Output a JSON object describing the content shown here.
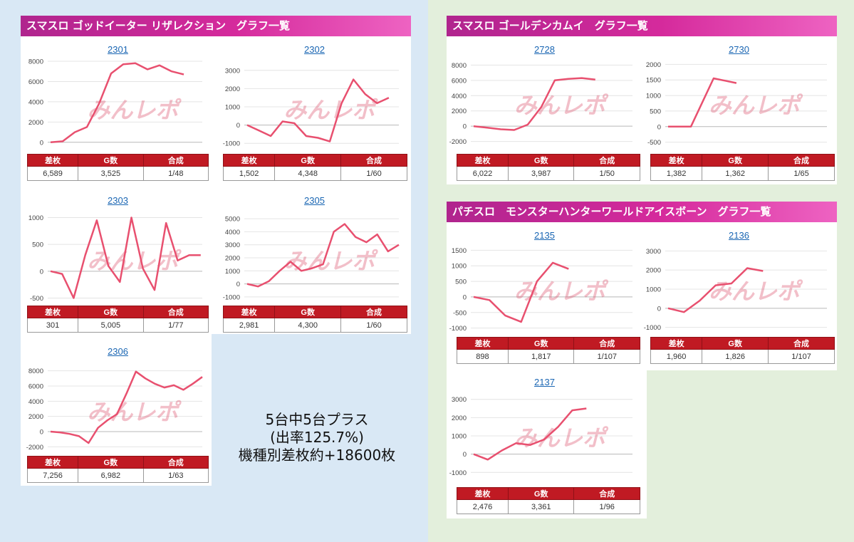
{
  "summary": {
    "line1": "5台中5台プラス",
    "line2": "(出率125.7%)",
    "line3": "機種別差枚約+18600枚"
  },
  "watermark": "みんレポ",
  "colors": {
    "line": "#e8506f",
    "header_start": "#b0258e",
    "header_end": "#ee63c2",
    "table_header": "#c01a23"
  },
  "panels": [
    {
      "title": "スマスロ ゴッドイーター リザレクション　グラフ一覧"
    },
    {
      "title": "スマスロ ゴールデンカムイ　グラフ一覧"
    },
    {
      "title": "パチスロ　モンスターハンターワールドアイスボーン　グラフ一覧"
    }
  ],
  "table_headers": [
    "差枚",
    "G数",
    "合成"
  ],
  "chart_data": [
    {
      "type": "line",
      "title": "2301",
      "ylim": [
        -1000,
        8000
      ],
      "yticks": [
        "8000",
        "6000",
        "4000",
        "2000",
        "0"
      ],
      "y": [
        0,
        100,
        1000,
        1500,
        3800,
        6800,
        7700,
        7800,
        7200,
        7600,
        7000,
        6700
      ],
      "stats": [
        "6,589",
        "3,525",
        "1/48"
      ]
    },
    {
      "type": "line",
      "title": "2302",
      "ylim": [
        -1500,
        3500
      ],
      "yticks": [
        "3000",
        "2000",
        "1000",
        "0",
        "-1000"
      ],
      "y": [
        0,
        -300,
        -600,
        200,
        100,
        -600,
        -700,
        -900,
        1200,
        2500,
        1700,
        1200,
        1500
      ],
      "stats": [
        "1,502",
        "4,348",
        "1/60"
      ]
    },
    {
      "type": "line",
      "title": "2303",
      "ylim": [
        -600,
        1100
      ],
      "yticks": [
        "1000",
        "500",
        "0",
        "-500"
      ],
      "y": [
        0,
        -50,
        -500,
        300,
        950,
        100,
        -200,
        1000,
        50,
        -350,
        900,
        200,
        300,
        300
      ],
      "stats": [
        "301",
        "5,005",
        "1/77"
      ]
    },
    {
      "type": "line",
      "title": "2305",
      "ylim": [
        -1500,
        5500
      ],
      "yticks": [
        "5000",
        "4000",
        "3000",
        "2000",
        "1000",
        "0",
        "-1000"
      ],
      "y": [
        0,
        -200,
        200,
        1000,
        1700,
        1000,
        1200,
        1500,
        4000,
        4600,
        3600,
        3200,
        3800,
        2500,
        3000
      ],
      "stats": [
        "2,981",
        "4,300",
        "1/60"
      ]
    },
    {
      "type": "line",
      "title": "2306",
      "ylim": [
        -3000,
        9000
      ],
      "yticks": [
        "8000",
        "6000",
        "4000",
        "2000",
        "0",
        "-2000"
      ],
      "y": [
        0,
        -100,
        -300,
        -600,
        -1500,
        500,
        1500,
        2300,
        5000,
        7900,
        7000,
        6300,
        5800,
        6100,
        5500,
        6300,
        7200
      ],
      "stats": [
        "7,256",
        "6,982",
        "1/63"
      ]
    },
    {
      "type": "line",
      "title": "2728",
      "ylim": [
        -2500,
        8500
      ],
      "yticks": [
        "8000",
        "6000",
        "4000",
        "2000",
        "0",
        "-2000"
      ],
      "y": [
        0,
        -200,
        -400,
        -500,
        200,
        2500,
        6000,
        6200,
        6300,
        6100
      ],
      "stats": [
        "6,022",
        "3,987",
        "1/50"
      ]
    },
    {
      "type": "line",
      "title": "2730",
      "ylim": [
        -600,
        2100
      ],
      "yticks": [
        "2000",
        "1500",
        "1000",
        "500",
        "0",
        "-500"
      ],
      "y": [
        0,
        0,
        1550,
        1400
      ],
      "stats": [
        "1,382",
        "1,362",
        "1/65"
      ]
    },
    {
      "type": "line",
      "title": "2135",
      "ylim": [
        -1100,
        1600
      ],
      "yticks": [
        "1500",
        "1000",
        "500",
        "0",
        "-500",
        "-1000"
      ],
      "y": [
        0,
        -100,
        -600,
        -800,
        500,
        1100,
        900
      ],
      "stats": [
        "898",
        "1,817",
        "1/107"
      ]
    },
    {
      "type": "line",
      "title": "2136",
      "ylim": [
        -1200,
        3200
      ],
      "yticks": [
        "3000",
        "2000",
        "1000",
        "0",
        "-1000"
      ],
      "y": [
        0,
        -200,
        400,
        1200,
        1300,
        2100,
        1950
      ],
      "stats": [
        "1,960",
        "1,826",
        "1/107"
      ]
    },
    {
      "type": "line",
      "title": "2137",
      "ylim": [
        -1300,
        3300
      ],
      "yticks": [
        "3000",
        "2000",
        "1000",
        "0",
        "-1000"
      ],
      "y": [
        0,
        -300,
        200,
        600,
        500,
        800,
        1500,
        2400,
        2500
      ],
      "stats": [
        "2,476",
        "3,361",
        "1/96"
      ]
    }
  ]
}
